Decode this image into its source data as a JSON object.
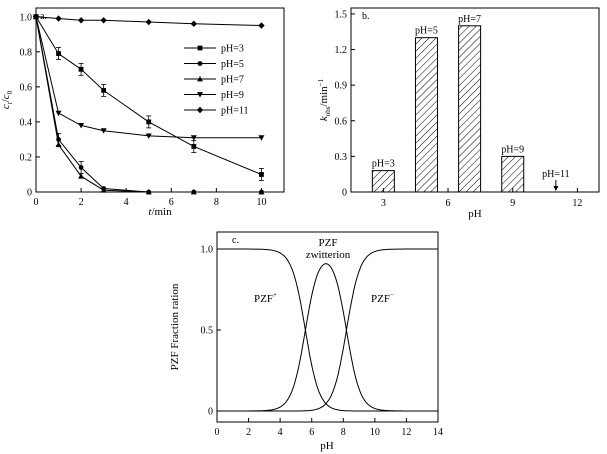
{
  "chart_data": [
    {
      "panel_label": "a.",
      "type": "line",
      "xlabel_var": "t",
      "xlabel_unit": "/min",
      "ylabel_var": "c",
      "ylabel_sub_t": "t",
      "ylabel_sep": "/",
      "ylabel_sub_0": "0",
      "xlim": [
        0,
        11
      ],
      "ylim": [
        0,
        1.05
      ],
      "xticks": [
        "0",
        "2",
        "4",
        "6",
        "8",
        "10"
      ],
      "yticks": [
        "0",
        "0.2",
        "0.4",
        "0.6",
        "0.8",
        "1.0"
      ],
      "legend_position": "top-right",
      "series": [
        {
          "name": "pH=3",
          "marker": "square",
          "x": [
            0,
            1,
            2,
            3,
            5,
            7,
            10
          ],
          "y": [
            1.0,
            0.79,
            0.7,
            0.58,
            0.4,
            0.26,
            0.1
          ]
        },
        {
          "name": "pH=5",
          "marker": "circle",
          "x": [
            0,
            1,
            2,
            3,
            5,
            7,
            10
          ],
          "y": [
            1.0,
            0.3,
            0.14,
            0.02,
            0.0,
            0.0,
            0.0
          ]
        },
        {
          "name": "pH=7",
          "marker": "triangle-up",
          "x": [
            0,
            1,
            2,
            3,
            5,
            7,
            10
          ],
          "y": [
            1.0,
            0.27,
            0.09,
            0.01,
            0.0,
            0.0,
            0.0
          ]
        },
        {
          "name": "pH=9",
          "marker": "triangle-down",
          "x": [
            0,
            1,
            2,
            3,
            5,
            7,
            10
          ],
          "y": [
            1.0,
            0.45,
            0.38,
            0.35,
            0.32,
            0.31,
            0.31
          ]
        },
        {
          "name": "pH=11",
          "marker": "diamond",
          "x": [
            0,
            1,
            2,
            3,
            5,
            7,
            10
          ],
          "y": [
            1.0,
            0.99,
            0.98,
            0.98,
            0.97,
            0.96,
            0.95
          ]
        }
      ]
    },
    {
      "panel_label": "b.",
      "type": "bar",
      "xlabel": "pH",
      "ylabel_var": "k",
      "ylabel_sub": "obs",
      "ylabel_unit": "/min",
      "ylabel_sup": "−1",
      "xlim": [
        1.5,
        13
      ],
      "ylim": [
        0,
        1.55
      ],
      "xticks": [
        "3",
        "6",
        "9",
        "12"
      ],
      "yticks": [
        "0",
        "0.3",
        "0.6",
        "0.9",
        "1.2",
        "1.5"
      ],
      "categories": [
        "pH=3",
        "pH=5",
        "pH=7",
        "pH=9",
        "pH=11"
      ],
      "x": [
        3,
        5,
        7,
        9,
        11
      ],
      "values": [
        0.18,
        1.3,
        1.4,
        0.3,
        0.0
      ]
    },
    {
      "panel_label": "c.",
      "type": "line",
      "xlabel": "pH",
      "ylabel": "PZF Fraction ration",
      "xlim": [
        0,
        14
      ],
      "ylim": [
        0,
        1
      ],
      "xticks": [
        "0",
        "2",
        "4",
        "6",
        "8",
        "10",
        "12",
        "14"
      ],
      "yticks": [
        "0",
        "0.5",
        "1.0"
      ],
      "pKa1": 5.6,
      "pKa2": 8.2,
      "annotations": {
        "cation_base": "PZF",
        "cation_sup": "+",
        "zwitter_line1": "PZF",
        "zwitter_line2": "zwitterion",
        "anion_base": "PZF",
        "anion_sup": "−"
      },
      "series": [
        {
          "name": "PZF+",
          "curve": "cation"
        },
        {
          "name": "PZF zwitterion",
          "curve": "zwitterion"
        },
        {
          "name": "PZF−",
          "curve": "anion"
        }
      ]
    }
  ]
}
